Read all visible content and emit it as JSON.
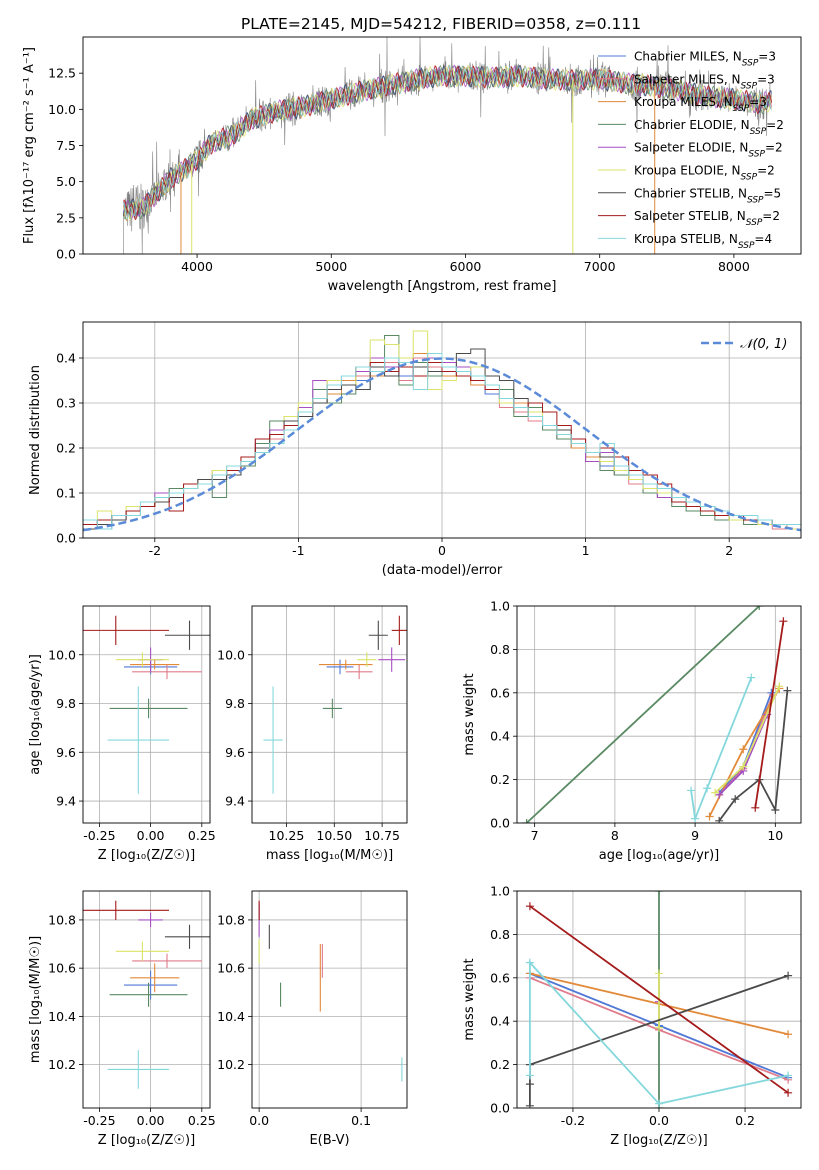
{
  "figure": {
    "title": "PLATE=2145, MJD=54212, FIBERID=0358, z=0.111"
  },
  "colors": {
    "Chabrier MILES": "#4f78d6",
    "Salpeter MILES": "#e07b8b",
    "Kroupa MILES": "#e28a3a",
    "Chabrier ELODIE": "#5a8a64",
    "Salpeter ELODIE": "#a64ec2",
    "Kroupa ELODIE": "#dbe36a",
    "Chabrier STELIB": "#4b4b4b",
    "Salpeter STELIB": "#a41b1b",
    "Kroupa STELIB": "#84d8dc",
    "grid": "#b0b0b0",
    "data_spectrum": "#808080",
    "gaussian": "#5b8bd8"
  },
  "chart_data": [
    {
      "type": "line",
      "id": "spectrum",
      "title": "PLATE=2145, MJD=54212, FIBERID=0358, z=0.111",
      "xlabel": "wavelength [Angstrom, rest frame]",
      "ylabel": "Flux [fλ10⁻¹⁷ erg cm⁻² s⁻¹ A⁻¹]",
      "xlim": [
        3150,
        8500
      ],
      "ylim": [
        0,
        15
      ],
      "xticks": [
        4000,
        5000,
        6000,
        7000,
        8000
      ],
      "yticks": [
        0.0,
        2.5,
        5.0,
        7.5,
        10.0,
        12.5
      ],
      "grid": false,
      "legend_position": "right",
      "continuum": {
        "x": [
          3450,
          3600,
          3700,
          3800,
          3900,
          4000,
          4100,
          4200,
          4300,
          4400,
          4600,
          4800,
          5000,
          5200,
          5400,
          5600,
          5800,
          6000,
          6200,
          6400,
          6600,
          6800,
          7000,
          7200,
          7400,
          7600,
          7800,
          8000,
          8200,
          8280
        ],
        "y": [
          3.0,
          3.2,
          4.2,
          5.2,
          5.8,
          6.5,
          7.6,
          8.0,
          8.4,
          9.3,
          9.9,
          10.2,
          10.7,
          11.2,
          11.6,
          12.0,
          12.3,
          12.3,
          12.2,
          12.3,
          12.1,
          12.0,
          12.1,
          11.8,
          11.6,
          11.3,
          10.9,
          10.7,
          10.4,
          10.6
        ]
      },
      "series": [
        {
          "name": "Chabrier MILES",
          "nssp": "3"
        },
        {
          "name": "Salpeter MILES",
          "nssp": "3"
        },
        {
          "name": "Kroupa MILES",
          "nssp": "3"
        },
        {
          "name": "Chabrier ELODIE",
          "nssp": "2"
        },
        {
          "name": "Salpeter ELODIE",
          "nssp": "2"
        },
        {
          "name": "Kroupa ELODIE",
          "nssp": "2"
        },
        {
          "name": "Chabrier STELIB",
          "nssp": "5"
        },
        {
          "name": "Salpeter STELIB",
          "nssp": "2"
        },
        {
          "name": "Kroupa STELIB",
          "nssp": "4"
        }
      ]
    },
    {
      "type": "bar",
      "id": "histogram",
      "xlabel": "(data-model)/error",
      "ylabel": "Normed distribution",
      "xlim": [
        -2.5,
        2.5
      ],
      "ylim": [
        0,
        0.48
      ],
      "xticks": [
        -2,
        -1,
        0,
        1,
        2
      ],
      "yticks": [
        0.0,
        0.1,
        0.2,
        0.3,
        0.4
      ],
      "grid": true,
      "legend_position": "top-right",
      "legend_label": "𝒩(0, 1)",
      "bin_width": 0.1,
      "hist_start": -2.5
    },
    {
      "type": "scatter",
      "id": "age_vs_Z",
      "xlabel": "Z [log₁₀(Z/Z☉)]",
      "ylabel": "age  [log₁₀(age/yr)]",
      "xlim": [
        -0.33,
        0.29
      ],
      "ylim": [
        9.31,
        10.2
      ],
      "xticks": [
        -0.25,
        0.0,
        0.25
      ],
      "yticks": [
        9.4,
        9.6,
        9.8,
        10.0
      ],
      "grid": true
    },
    {
      "type": "scatter",
      "id": "age_vs_mass",
      "xlabel": "mass [log₁₀(M/M☉)]",
      "xlim": [
        10.07,
        10.88
      ],
      "ylim": [
        9.31,
        10.2
      ],
      "xticks": [
        10.25,
        10.5,
        10.75
      ],
      "yticks": [
        9.4,
        9.6,
        9.8,
        10.0
      ],
      "grid": true
    },
    {
      "type": "line",
      "id": "weight_vs_age",
      "xlabel": "age  [log₁₀(age/yr)]",
      "ylabel": "mass weight",
      "xlim": [
        6.78,
        10.32
      ],
      "ylim": [
        0,
        1
      ],
      "xticks": [
        7,
        8,
        9,
        10
      ],
      "yticks": [
        0.0,
        0.2,
        0.4,
        0.6,
        0.8,
        1.0
      ],
      "grid": true
    },
    {
      "type": "scatter",
      "id": "mass_vs_Z",
      "xlabel": "Z [log₁₀(Z/Z☉)]",
      "ylabel": "mass [log₁₀(M/M☉)]",
      "xlim": [
        -0.33,
        0.29
      ],
      "ylim": [
        10.02,
        10.92
      ],
      "xticks": [
        -0.25,
        0.0,
        0.25
      ],
      "yticks": [
        10.2,
        10.4,
        10.6,
        10.8
      ],
      "grid": true
    },
    {
      "type": "scatter",
      "id": "mass_vs_ebv",
      "xlabel": "E(B-V)",
      "xlim": [
        -0.007,
        0.145
      ],
      "ylim": [
        10.02,
        10.92
      ],
      "xticks": [
        0.0,
        0.1
      ],
      "yticks": [
        10.2,
        10.4,
        10.6,
        10.8
      ],
      "grid": true
    },
    {
      "type": "line",
      "id": "weight_vs_Z",
      "xlabel": "Z [log₁₀(Z/Z☉)]",
      "ylabel": "mass weight",
      "xlim": [
        -0.33,
        0.33
      ],
      "ylim": [
        0,
        1
      ],
      "xticks": [
        -0.2,
        0.0,
        0.2
      ],
      "yticks": [
        0.0,
        0.2,
        0.4,
        0.6,
        0.8,
        1.0
      ],
      "grid": true
    }
  ],
  "models": [
    {
      "name": "Chabrier MILES",
      "hist": [
        0.03,
        0.02,
        0.05,
        0.06,
        0.07,
        0.09,
        0.1,
        0.11,
        0.12,
        0.13,
        0.15,
        0.17,
        0.2,
        0.23,
        0.26,
        0.28,
        0.31,
        0.33,
        0.36,
        0.35,
        0.37,
        0.38,
        0.36,
        0.39,
        0.37,
        0.38,
        0.36,
        0.35,
        0.32,
        0.3,
        0.29,
        0.27,
        0.24,
        0.22,
        0.2,
        0.18,
        0.16,
        0.14,
        0.13,
        0.11,
        0.09,
        0.08,
        0.07,
        0.06,
        0.05,
        0.04,
        0.04,
        0.03,
        0.03,
        0.02
      ],
      "age": 9.95,
      "age_err": 0.03,
      "Z": 0.0,
      "Z_err": 0.13,
      "mass": 10.53,
      "mass_err": 0.07,
      "mass_err_Z": 0.06,
      "ebv": null,
      "age_pts": [
        [
          9.3,
          0.14
        ],
        [
          9.6,
          0.26
        ],
        [
          9.95,
          0.6
        ]
      ],
      "Z_pts": [
        [
          -0.3,
          0.62
        ],
        [
          0.0,
          0.38
        ],
        [
          0.3,
          0.14
        ]
      ]
    },
    {
      "name": "Salpeter MILES",
      "hist": [
        0.03,
        0.04,
        0.04,
        0.05,
        0.07,
        0.08,
        0.1,
        0.11,
        0.13,
        0.15,
        0.16,
        0.18,
        0.21,
        0.22,
        0.25,
        0.29,
        0.3,
        0.33,
        0.34,
        0.36,
        0.37,
        0.39,
        0.35,
        0.4,
        0.38,
        0.36,
        0.37,
        0.35,
        0.34,
        0.29,
        0.28,
        0.26,
        0.24,
        0.22,
        0.21,
        0.19,
        0.17,
        0.14,
        0.12,
        0.1,
        0.1,
        0.09,
        0.08,
        0.06,
        0.05,
        0.05,
        0.03,
        0.03,
        0.02,
        0.02
      ],
      "age": 9.93,
      "age_err": 0.03,
      "Z": 0.08,
      "Z_err": 0.17,
      "mass": 10.63,
      "mass_err": 0.07,
      "mass_err_Z": 0.03,
      "ebv": 0.062,
      "age_pts": [
        [
          9.3,
          0.13
        ],
        [
          9.6,
          0.25
        ],
        [
          9.97,
          0.59
        ]
      ],
      "Z_pts": [
        [
          -0.3,
          0.6
        ],
        [
          0.0,
          0.36
        ],
        [
          0.3,
          0.13
        ]
      ]
    },
    {
      "name": "Kroupa MILES",
      "hist": [
        0.02,
        0.03,
        0.04,
        0.06,
        0.07,
        0.08,
        0.09,
        0.12,
        0.13,
        0.14,
        0.15,
        0.17,
        0.19,
        0.24,
        0.25,
        0.27,
        0.3,
        0.32,
        0.35,
        0.37,
        0.36,
        0.38,
        0.39,
        0.41,
        0.37,
        0.36,
        0.36,
        0.34,
        0.33,
        0.31,
        0.3,
        0.27,
        0.25,
        0.23,
        0.2,
        0.18,
        0.17,
        0.15,
        0.13,
        0.12,
        0.1,
        0.09,
        0.07,
        0.06,
        0.05,
        0.04,
        0.04,
        0.03,
        0.03,
        0.02
      ],
      "age": 9.96,
      "age_err": 0.02,
      "Z": 0.02,
      "Z_err": 0.12,
      "mass": 10.56,
      "mass_err": 0.14,
      "mass_err_Z": 0.06,
      "ebv": 0.06,
      "age_pts": [
        [
          9.18,
          0.03
        ],
        [
          9.6,
          0.34
        ],
        [
          10.05,
          0.62
        ]
      ],
      "Z_pts": [
        [
          -0.3,
          0.62
        ],
        [
          0.3,
          0.34
        ]
      ]
    },
    {
      "name": "Chabrier ELODIE",
      "hist": [
        0.04,
        0.03,
        0.05,
        0.06,
        0.07,
        0.08,
        0.11,
        0.12,
        0.12,
        0.09,
        0.14,
        0.16,
        0.21,
        0.26,
        0.27,
        0.29,
        0.33,
        0.3,
        0.32,
        0.33,
        0.37,
        0.45,
        0.34,
        0.39,
        0.36,
        0.38,
        0.37,
        0.35,
        0.34,
        0.33,
        0.27,
        0.29,
        0.24,
        0.22,
        0.21,
        0.17,
        0.15,
        0.14,
        0.13,
        0.1,
        0.09,
        0.07,
        0.06,
        0.05,
        0.04,
        0.05,
        0.03,
        0.03,
        0.03,
        0.02
      ],
      "age": 9.78,
      "age_err": 0.04,
      "Z": -0.01,
      "Z_err": 0.19,
      "mass": 10.49,
      "mass_err": 0.05,
      "mass_err_Z": 0.05,
      "ebv": 0.021,
      "age_pts": [
        [
          6.9,
          0.0
        ],
        [
          9.8,
          1.0
        ]
      ],
      "Z_pts": [
        [
          0.0,
          0.0
        ],
        [
          0.0,
          1.0
        ]
      ]
    },
    {
      "name": "Salpeter ELODIE",
      "hist": [
        0.03,
        0.04,
        0.04,
        0.05,
        0.07,
        0.1,
        0.1,
        0.12,
        0.13,
        0.13,
        0.15,
        0.17,
        0.22,
        0.24,
        0.26,
        0.29,
        0.35,
        0.34,
        0.36,
        0.37,
        0.4,
        0.38,
        0.4,
        0.36,
        0.4,
        0.39,
        0.38,
        0.36,
        0.33,
        0.31,
        0.29,
        0.28,
        0.25,
        0.23,
        0.22,
        0.17,
        0.19,
        0.16,
        0.13,
        0.12,
        0.09,
        0.09,
        0.07,
        0.06,
        0.05,
        0.05,
        0.04,
        0.03,
        0.03,
        0.02
      ],
      "age": 9.98,
      "age_err": 0.05,
      "Z": 0.0,
      "Z_err": 0.06,
      "mass": 10.8,
      "mass_err": 0.07,
      "mass_err_Z": 0.03,
      "ebv": 0.0,
      "age_pts": [
        [
          9.3,
          0.13
        ],
        [
          9.6,
          0.24
        ],
        [
          9.9,
          0.5
        ]
      ],
      "Z_pts": [
        [
          0.0,
          0.49
        ]
      ]
    },
    {
      "name": "Kroupa ELODIE",
      "hist": [
        0.03,
        0.06,
        0.05,
        0.07,
        0.07,
        0.09,
        0.1,
        0.11,
        0.13,
        0.15,
        0.16,
        0.18,
        0.2,
        0.23,
        0.27,
        0.3,
        0.31,
        0.35,
        0.34,
        0.38,
        0.44,
        0.43,
        0.4,
        0.46,
        0.33,
        0.35,
        0.37,
        0.38,
        0.34,
        0.3,
        0.29,
        0.28,
        0.25,
        0.23,
        0.21,
        0.19,
        0.17,
        0.15,
        0.13,
        0.11,
        0.1,
        0.09,
        0.07,
        0.06,
        0.05,
        0.04,
        0.04,
        0.03,
        0.03,
        0.02
      ],
      "age": 9.98,
      "age_err": 0.03,
      "Z": -0.04,
      "Z_err": 0.13,
      "mass": 10.67,
      "mass_err": 0.05,
      "mass_err_Z": 0.04,
      "ebv": 0.0,
      "age_pts": [
        [
          9.25,
          0.14
        ],
        [
          9.6,
          0.26
        ],
        [
          10.05,
          0.63
        ]
      ],
      "Z_pts": [
        [
          0.0,
          0.37
        ],
        [
          0.0,
          0.62
        ]
      ]
    },
    {
      "name": "Chabrier STELIB",
      "hist": [
        0.02,
        0.03,
        0.04,
        0.06,
        0.07,
        0.08,
        0.09,
        0.12,
        0.13,
        0.13,
        0.14,
        0.17,
        0.2,
        0.23,
        0.26,
        0.27,
        0.3,
        0.33,
        0.34,
        0.33,
        0.38,
        0.36,
        0.39,
        0.38,
        0.37,
        0.38,
        0.41,
        0.42,
        0.36,
        0.35,
        0.31,
        0.27,
        0.25,
        0.24,
        0.21,
        0.19,
        0.18,
        0.16,
        0.14,
        0.12,
        0.11,
        0.09,
        0.08,
        0.07,
        0.06,
        0.05,
        0.04,
        0.04,
        0.03,
        0.03
      ],
      "age": 10.08,
      "age_err": 0.06,
      "Z": 0.19,
      "Z_err": 0.12,
      "mass": 10.73,
      "mass_err": 0.05,
      "mass_err_Z": 0.05,
      "ebv": 0.01,
      "age_pts": [
        [
          9.3,
          0.01
        ],
        [
          9.5,
          0.11
        ],
        [
          9.8,
          0.2
        ],
        [
          10.0,
          0.06
        ],
        [
          10.15,
          0.61
        ]
      ],
      "Z_pts": [
        [
          -0.3,
          0.01
        ],
        [
          -0.3,
          0.11
        ],
        [
          -0.3,
          0.2
        ],
        [
          0.3,
          0.61
        ]
      ]
    },
    {
      "name": "Salpeter STELIB",
      "hist": [
        0.03,
        0.04,
        0.05,
        0.06,
        0.07,
        0.09,
        0.06,
        0.12,
        0.12,
        0.14,
        0.15,
        0.18,
        0.22,
        0.23,
        0.25,
        0.28,
        0.31,
        0.34,
        0.36,
        0.38,
        0.39,
        0.37,
        0.38,
        0.36,
        0.39,
        0.37,
        0.36,
        0.35,
        0.33,
        0.31,
        0.29,
        0.3,
        0.28,
        0.25,
        0.22,
        0.19,
        0.2,
        0.18,
        0.15,
        0.14,
        0.12,
        0.08,
        0.07,
        0.06,
        0.05,
        0.05,
        0.04,
        0.04,
        0.03,
        0.03
      ],
      "age": 10.1,
      "age_err": 0.06,
      "Z": -0.17,
      "Z_err": 0.26,
      "mass": 10.84,
      "mass_err": 0.04,
      "mass_err_Z": 0.04,
      "ebv": 0.0,
      "age_pts": [
        [
          9.75,
          0.07
        ],
        [
          10.1,
          0.93
        ]
      ],
      "Z_pts": [
        [
          -0.3,
          0.93
        ],
        [
          0.3,
          0.07
        ]
      ]
    },
    {
      "name": "Kroupa STELIB",
      "hist": [
        0.04,
        0.02,
        0.05,
        0.05,
        0.08,
        0.09,
        0.1,
        0.11,
        0.12,
        0.14,
        0.16,
        0.17,
        0.19,
        0.21,
        0.24,
        0.28,
        0.31,
        0.34,
        0.36,
        0.38,
        0.37,
        0.4,
        0.39,
        0.33,
        0.41,
        0.38,
        0.37,
        0.36,
        0.34,
        0.31,
        0.29,
        0.27,
        0.25,
        0.23,
        0.21,
        0.19,
        0.21,
        0.16,
        0.14,
        0.12,
        0.11,
        0.09,
        0.08,
        0.07,
        0.06,
        0.05,
        0.05,
        0.04,
        0.03,
        0.03
      ],
      "age": 9.65,
      "age_err": 0.22,
      "Z": -0.06,
      "Z_err": 0.15,
      "mass": 10.18,
      "mass_err": 0.05,
      "mass_err_Z": 0.08,
      "ebv": 0.14,
      "age_pts": [
        [
          8.95,
          0.15
        ],
        [
          9.0,
          0.02
        ],
        [
          9.15,
          0.16
        ],
        [
          9.7,
          0.67
        ]
      ],
      "Z_pts": [
        [
          -0.3,
          0.15
        ],
        [
          -0.3,
          0.67
        ],
        [
          0.0,
          0.02
        ],
        [
          0.3,
          0.15
        ]
      ]
    }
  ]
}
